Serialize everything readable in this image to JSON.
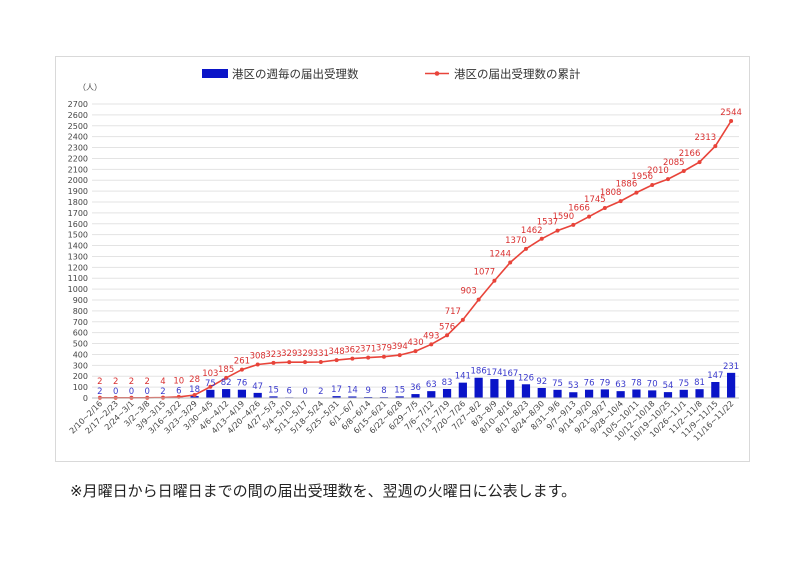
{
  "footnote": "※月曜日から日曜日までの間の届出受理数を、翌週の火曜日に公表します。",
  "chart_data": {
    "type": "bar+line",
    "y_unit": "（人）",
    "ylim": [
      0,
      2700
    ],
    "ytick_step": 100,
    "grid": true,
    "legend_position": "top",
    "colors": {
      "bar": "#0a14c8",
      "line": "#e8443a",
      "bar_label": "#3a3acc",
      "line_label": "#d93030"
    },
    "categories": [
      "2/10~2/16",
      "2/17~2/23",
      "2/24~3/1",
      "3/2~3/8",
      "3/9~3/15",
      "3/16~3/22",
      "3/23~3/29",
      "3/30~4/5",
      "4/6~4/12",
      "4/13~4/19",
      "4/20~4/26",
      "4/27~5/3",
      "5/4~5/10",
      "5/11~5/17",
      "5/18~5/24",
      "5/25~5/31",
      "6/1~6/7",
      "6/8~6/14",
      "6/15~6/21",
      "6/22~6/28",
      "6/29~7/5",
      "7/6~7/12",
      "7/13~7/19",
      "7/20~7/26",
      "7/27~8/2",
      "8/3~8/9",
      "8/10~8/16",
      "8/17~8/23",
      "8/24~8/30",
      "8/31~9/6",
      "9/7~9/13",
      "9/14~9/20",
      "9/21~9/27",
      "9/28~10/4",
      "10/5~10/11",
      "10/12~10/18",
      "10/19~10/25",
      "10/26~11/1",
      "11/2~11/8",
      "11/9~11/15",
      "11/16~11/22"
    ],
    "series": [
      {
        "name": "港区の週毎の届出受理数",
        "type": "bar",
        "values": [
          2,
          0,
          0,
          0,
          2,
          6,
          18,
          75,
          82,
          76,
          47,
          15,
          6,
          0,
          2,
          17,
          14,
          9,
          8,
          15,
          36,
          63,
          83,
          141,
          186,
          174,
          167,
          126,
          92,
          75,
          53,
          76,
          79,
          63,
          78,
          70,
          54,
          75,
          81,
          147,
          231
        ]
      },
      {
        "name": "港区の届出受理数の累計",
        "type": "line",
        "values": [
          2,
          2,
          2,
          2,
          4,
          10,
          28,
          103,
          185,
          261,
          308,
          323,
          329,
          329,
          331,
          348,
          362,
          371,
          379,
          394,
          430,
          493,
          576,
          717,
          903,
          1077,
          1244,
          1370,
          1462,
          1537,
          1590,
          1666,
          1745,
          1808,
          1886,
          1956,
          2010,
          2085,
          2166,
          2313,
          2544
        ]
      }
    ]
  }
}
